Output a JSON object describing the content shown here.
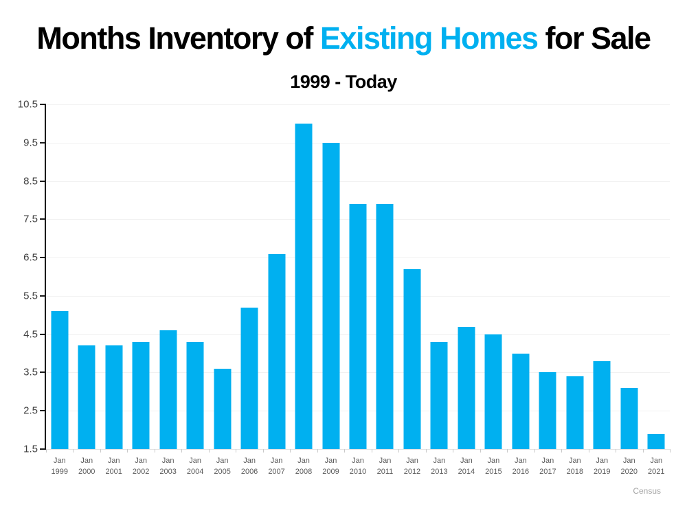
{
  "title": {
    "prefix": "Months Inventory of ",
    "highlight": "Existing Homes",
    "suffix": " for Sale",
    "highlight_color": "#00b0f0"
  },
  "subtitle": "1999 - Today",
  "source": "Census",
  "chart_data": {
    "type": "bar",
    "title": "Months Inventory of Existing Homes for Sale",
    "subtitle": "1999 - Today",
    "xlabel": "",
    "ylabel": "",
    "ylim": [
      1.5,
      10.5
    ],
    "yticks": [
      1.5,
      2.5,
      3.5,
      4.5,
      5.5,
      6.5,
      7.5,
      8.5,
      9.5,
      10.5
    ],
    "grid": "horizontal, light",
    "legend": "none",
    "bar_color": "#00b0f0",
    "categories": [
      {
        "line1": "Jan",
        "line2": "1999"
      },
      {
        "line1": "Jan",
        "line2": "2000"
      },
      {
        "line1": "Jan",
        "line2": "2001"
      },
      {
        "line1": "Jan",
        "line2": "2002"
      },
      {
        "line1": "Jan",
        "line2": "2003"
      },
      {
        "line1": "Jan",
        "line2": "2004"
      },
      {
        "line1": "Jan",
        "line2": "2005"
      },
      {
        "line1": "Jan",
        "line2": "2006"
      },
      {
        "line1": "Jan",
        "line2": "2007"
      },
      {
        "line1": "Jan",
        "line2": "2008"
      },
      {
        "line1": "Jan",
        "line2": "2009"
      },
      {
        "line1": "Jan",
        "line2": "2010"
      },
      {
        "line1": "Jan",
        "line2": "2011"
      },
      {
        "line1": "Jan",
        "line2": "2012"
      },
      {
        "line1": "Jan",
        "line2": "2013"
      },
      {
        "line1": "Jan",
        "line2": "2014"
      },
      {
        "line1": "Jan",
        "line2": "2015"
      },
      {
        "line1": "Jan",
        "line2": "2016"
      },
      {
        "line1": "Jan",
        "line2": "2017"
      },
      {
        "line1": "Jan",
        "line2": "2018"
      },
      {
        "line1": "Jan",
        "line2": "2019"
      },
      {
        "line1": "Jan",
        "line2": "2020"
      },
      {
        "line1": "Jan",
        "line2": "2021"
      }
    ],
    "values": [
      5.1,
      4.2,
      4.2,
      4.3,
      4.6,
      4.3,
      3.6,
      5.2,
      6.6,
      10.0,
      9.5,
      7.9,
      7.9,
      6.2,
      4.3,
      4.7,
      4.5,
      4.0,
      3.5,
      3.4,
      3.8,
      3.1,
      1.9
    ]
  }
}
